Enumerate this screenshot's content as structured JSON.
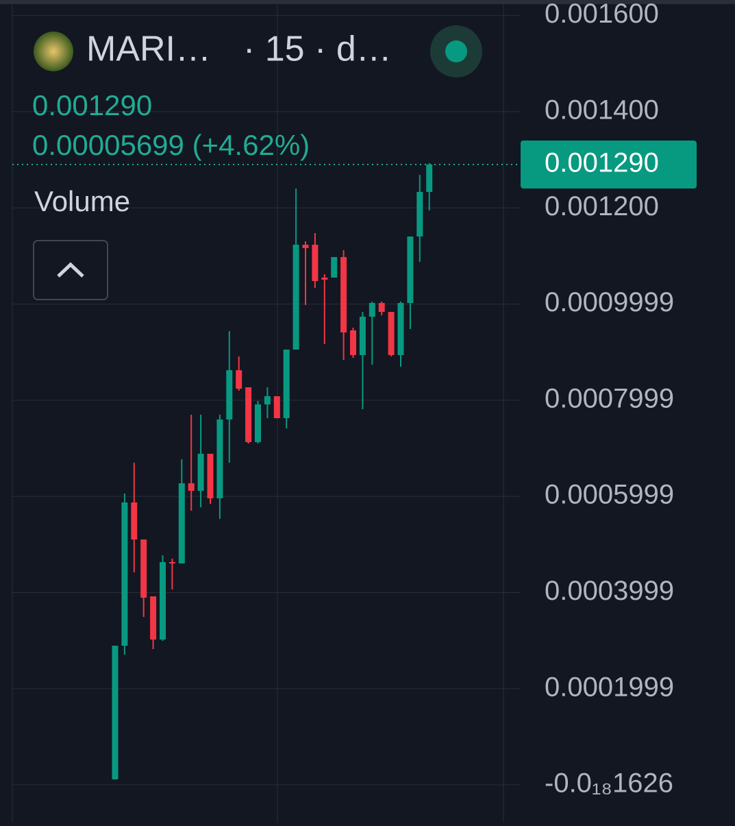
{
  "header": {
    "symbol": "MARI…",
    "interval": "· 15 · d…",
    "price": "0.001290",
    "change": "0.00005699 (+4.62%)",
    "indicator": "Volume",
    "toggle": "^"
  },
  "chart_data": {
    "type": "candlestick",
    "up_color": "#089981",
    "down_color": "#f23645",
    "grid": true,
    "open": [
      1.14e-05,
      0.0002894,
      0.0005873,
      0.0005103,
      0.000392,
      0.0003022,
      0.0004633,
      0.0004604,
      0.0006272,
      0.0006115,
      0.0006885,
      0.0005959,
      0.0007598,
      0.0008624,
      0.0008268,
      0.0007128,
      0.0007912,
      0.0008083,
      0.0007626,
      0.0009052,
      0.0011233,
      0.0011233,
      0.0010549,
      0.0010549,
      0.0010976,
      0.0009451,
      0.0008938,
      0.0009736,
      0.0010021,
      0.0009836,
      0.0008938,
      0.0010021,
      0.0011404,
      0.0012331
    ],
    "high": [
      0.0002894,
      0.0006058,
      0.00067,
      0.0005103,
      0.000392,
      0.0004775,
      0.0004704,
      0.0006771,
      0.0007698,
      0.0007698,
      0.0006885,
      0.0007698,
      0.0009437,
      0.0008909,
      0.0008268,
      0.0007983,
      0.0008268,
      0.0008083,
      0.0009052,
      0.0012402,
      0.0011304,
      0.0011475,
      0.001062,
      0.0010976,
      0.0011119,
      0.0009508,
      0.0009836,
      0.001005,
      0.001005,
      0.0009836,
      0.001005,
      0.0011404,
      0.0012687,
      0.0012929
    ],
    "low": [
      1.14e-05,
      0.0002708,
      0.0004419,
      0.0003492,
      0.0002822,
      0.0002994,
      0.0004063,
      0.0004604,
      0.0005702,
      0.0005773,
      0.0005845,
      0.0005531,
      0.00067,
      0.0008197,
      0.0007099,
      0.0007099,
      0.0007626,
      0.0007626,
      0.0007413,
      0.0009052,
      0.0009979,
      0.0010335,
      0.0009166,
      0.0010549,
      0.0008838,
      0.0008881,
      0.0007812,
      0.0008738,
      0.0009765,
      0.0008909,
      0.0008696,
      0.000948,
      0.0010877,
      0.0011946
    ],
    "close": [
      0.0002894,
      0.0005873,
      0.0005103,
      0.0003892,
      0.0003022,
      0.0004633,
      0.0004604,
      0.0006272,
      0.0006115,
      0.0006885,
      0.0005959,
      0.0007598,
      0.0008624,
      0.0008239,
      0.0007128,
      0.0007912,
      0.0008083,
      0.0007626,
      0.0009052,
      0.0011233,
      0.0011162,
      0.0010477,
      0.0010506,
      0.0010976,
      0.0009408,
      0.0008938,
      0.0009736,
      0.0010021,
      0.0009836,
      0.0008938,
      0.0010021,
      0.0011404,
      0.0012331,
      0.00129
    ],
    "ylim": [
      -7.84e-05,
      0.0016322
    ],
    "yticks": [
      {
        "value": -1.626e-20,
        "label": "-0.0₁₈1626"
      },
      0.0001999,
      0.0003999,
      0.0005999,
      0.0007999,
      0.0009999,
      {
        "value": 0.0012,
        "label": "0.001200"
      },
      {
        "value": 0.0014,
        "label": "0.001400"
      },
      {
        "value": 0.0016,
        "label": "0.001600"
      }
    ],
    "last_price": {
      "value": 0.00129,
      "label": "0.001290"
    }
  }
}
